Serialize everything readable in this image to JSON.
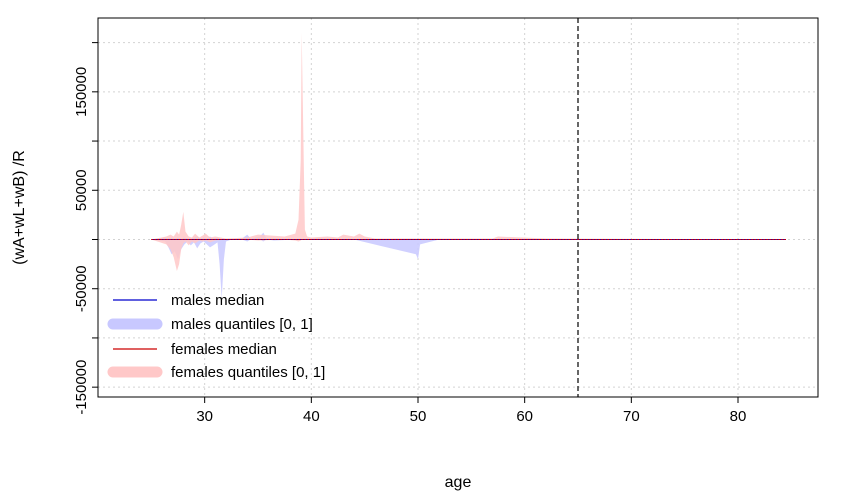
{
  "chart_data": {
    "type": "area",
    "xlabel": "age",
    "ylabel": "(wA+wL+wB) /R",
    "xlim": [
      20,
      87.5
    ],
    "ylim": [
      -160000,
      225000
    ],
    "x_ticks": [
      30,
      40,
      50,
      60,
      70,
      80
    ],
    "y_ticks": [
      -150000,
      -50000,
      50000,
      150000
    ],
    "y_gridlines": [
      -150000,
      -100000,
      -50000,
      0,
      50000,
      100000,
      150000,
      200000
    ],
    "grid": true,
    "legend_position": "bottom-left",
    "vline": {
      "x": 65,
      "style": "dashed",
      "color": "#000000"
    },
    "series": [
      {
        "name": "males median",
        "kind": "line",
        "color": "#0000cc",
        "x": [
          25,
          84.5
        ],
        "y": [
          0,
          0
        ]
      },
      {
        "name": "males quantiles [0, 1]",
        "kind": "band",
        "color": "#c8c8ff",
        "x": [
          25,
          26.3,
          26.6,
          26.9,
          27.2,
          27.5,
          27.8,
          28.1,
          28.4,
          28.7,
          29.0,
          29.3,
          29.6,
          29.9,
          30.2,
          30.5,
          30.8,
          31.2,
          31.4,
          31.6,
          31.8,
          32.0,
          32.5,
          33.5,
          34.0,
          34.3,
          35.2,
          35.5,
          35.8,
          36.5,
          38.5,
          39.0,
          39.5,
          40.5,
          44.0,
          49.8,
          50.0,
          50.2,
          52.0,
          57.0,
          65.0,
          84.5
        ],
        "lower": [
          0,
          -2000,
          -8000,
          -15000,
          -12000,
          -20000,
          -10000,
          -5000,
          -2000,
          -6000,
          -3000,
          -9000,
          -4000,
          -2000,
          -5000,
          -8000,
          -6000,
          -3000,
          -25000,
          -60000,
          -20000,
          -2000,
          0,
          0,
          -2000,
          0,
          0,
          -2000,
          0,
          -1000,
          0,
          0,
          0,
          0,
          0,
          -15000,
          -20000,
          -5000,
          0,
          0,
          0,
          0
        ],
        "upper": [
          0,
          2000,
          1000,
          2000,
          1000,
          2000,
          1000,
          2000,
          1000,
          1000,
          2000,
          3000,
          1000,
          2000,
          1000,
          3000,
          1000,
          2000,
          1000,
          0,
          1000,
          0,
          0,
          1000,
          5000,
          1000,
          3000,
          7000,
          1000,
          1000,
          0,
          1000,
          0,
          1000,
          0,
          1000,
          0,
          1000,
          0,
          0,
          0,
          0
        ]
      },
      {
        "name": "females median",
        "kind": "line",
        "color": "#cc0000",
        "x": [
          25,
          84.5
        ],
        "y": [
          0,
          0
        ]
      },
      {
        "name": "females quantiles [0, 1]",
        "kind": "band",
        "color": "#ffc8c8",
        "x": [
          25,
          26.4,
          26.8,
          27.1,
          27.4,
          27.6,
          27.8,
          28.0,
          28.2,
          28.5,
          28.8,
          29.1,
          29.5,
          29.8,
          30.1,
          30.5,
          31.0,
          32.0,
          34.0,
          35.0,
          37.5,
          38.5,
          38.8,
          39.0,
          39.1,
          39.2,
          39.3,
          39.4,
          39.6,
          40.0,
          41.5,
          42.5,
          43.0,
          44.0,
          44.5,
          45.0,
          46.0,
          50.0,
          55.0,
          57.0,
          57.5,
          62.0,
          84.5
        ],
        "lower": [
          0,
          -5000,
          -10000,
          -18000,
          -32000,
          -25000,
          -10000,
          -4000,
          -2000,
          -6000,
          -2000,
          -4000,
          -1000,
          -2000,
          -1000,
          -3000,
          -1000,
          0,
          0,
          -1000,
          0,
          -1000,
          -2000,
          -1000,
          0,
          0,
          0,
          0,
          0,
          0,
          0,
          0,
          0,
          0,
          0,
          0,
          0,
          0,
          0,
          0,
          0,
          0,
          0
        ],
        "upper": [
          0,
          3000,
          5000,
          3000,
          8000,
          5000,
          15000,
          28000,
          8000,
          3000,
          2000,
          6000,
          2000,
          4000,
          6000,
          2000,
          3000,
          1000,
          2000,
          5000,
          3000,
          6000,
          20000,
          80000,
          210000,
          140000,
          70000,
          10000,
          3000,
          2000,
          3000,
          2000,
          5000,
          3000,
          6000,
          3000,
          1000,
          1000,
          1000,
          1000,
          3000,
          1000,
          0
        ]
      }
    ]
  }
}
